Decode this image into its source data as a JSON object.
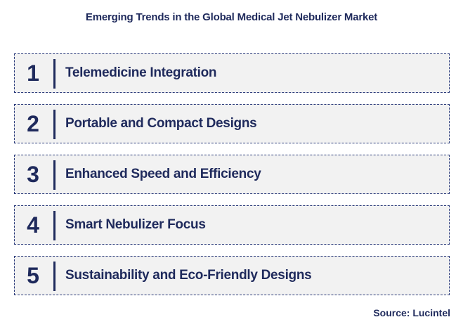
{
  "title": "Emerging Trends in the Global Medical Jet Nebulizer Market",
  "trends": [
    {
      "number": "1",
      "label": "Telemedicine Integration"
    },
    {
      "number": "2",
      "label": "Portable and Compact Designs"
    },
    {
      "number": "3",
      "label": "Enhanced Speed and Efficiency"
    },
    {
      "number": "4",
      "label": "Smart Nebulizer Focus"
    },
    {
      "number": "5",
      "label": "Sustainability and Eco-Friendly Designs"
    }
  ],
  "source": "Source: Lucintel",
  "colors": {
    "text": "#1f2a5c",
    "box_fill": "#f2f2f2",
    "box_border": "#2a3a7a"
  }
}
